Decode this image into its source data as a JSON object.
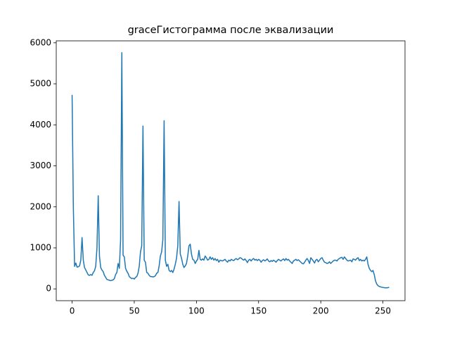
{
  "chart_data": {
    "type": "line",
    "title": "graceГистограмма после эквализации",
    "color": "#1f77b4",
    "x": [
      0,
      1,
      2,
      3,
      4,
      5,
      6,
      7,
      8,
      9,
      10,
      11,
      12,
      13,
      14,
      15,
      16,
      17,
      18,
      19,
      20,
      21,
      22,
      23,
      24,
      25,
      26,
      27,
      28,
      29,
      30,
      31,
      32,
      33,
      34,
      35,
      36,
      37,
      38,
      39,
      40,
      41,
      42,
      43,
      44,
      45,
      46,
      47,
      48,
      49,
      50,
      51,
      52,
      53,
      54,
      55,
      56,
      57,
      58,
      59,
      60,
      61,
      62,
      63,
      64,
      65,
      66,
      67,
      68,
      69,
      70,
      71,
      72,
      73,
      74,
      75,
      76,
      77,
      78,
      79,
      80,
      81,
      82,
      83,
      84,
      85,
      86,
      87,
      88,
      89,
      90,
      91,
      92,
      93,
      94,
      95,
      96,
      97,
      98,
      99,
      100,
      101,
      102,
      103,
      104,
      105,
      106,
      107,
      108,
      109,
      110,
      111,
      112,
      113,
      114,
      115,
      116,
      117,
      118,
      119,
      120,
      121,
      122,
      123,
      124,
      125,
      126,
      127,
      128,
      129,
      130,
      131,
      132,
      133,
      134,
      135,
      136,
      137,
      138,
      139,
      140,
      141,
      142,
      143,
      144,
      145,
      146,
      147,
      148,
      149,
      150,
      151,
      152,
      153,
      154,
      155,
      156,
      157,
      158,
      159,
      160,
      161,
      162,
      163,
      164,
      165,
      166,
      167,
      168,
      169,
      170,
      171,
      172,
      173,
      174,
      175,
      176,
      177,
      178,
      179,
      180,
      181,
      182,
      183,
      184,
      185,
      186,
      187,
      188,
      189,
      190,
      191,
      192,
      193,
      194,
      195,
      196,
      197,
      198,
      199,
      200,
      201,
      202,
      203,
      204,
      205,
      206,
      207,
      208,
      209,
      210,
      211,
      212,
      213,
      214,
      215,
      216,
      217,
      218,
      219,
      220,
      221,
      222,
      223,
      224,
      225,
      226,
      227,
      228,
      229,
      230,
      231,
      232,
      233,
      234,
      235,
      236,
      237,
      238,
      239,
      240,
      241,
      242,
      243,
      244,
      245,
      246,
      247,
      248,
      249,
      250,
      251,
      252,
      253,
      254,
      255
    ],
    "values": [
      4730,
      2000,
      550,
      630,
      530,
      540,
      560,
      700,
      1250,
      700,
      520,
      460,
      400,
      340,
      330,
      350,
      330,
      400,
      440,
      550,
      1000,
      2270,
      800,
      520,
      460,
      420,
      330,
      280,
      230,
      220,
      210,
      200,
      210,
      220,
      250,
      350,
      400,
      620,
      500,
      1200,
      5760,
      820,
      780,
      500,
      430,
      380,
      300,
      270,
      250,
      260,
      240,
      280,
      300,
      380,
      550,
      900,
      1050,
      3970,
      700,
      650,
      400,
      380,
      330,
      300,
      300,
      290,
      300,
      320,
      380,
      400,
      560,
      800,
      900,
      1200,
      4100,
      700,
      550,
      600,
      450,
      420,
      450,
      400,
      480,
      600,
      750,
      1050,
      2130,
      850,
      750,
      600,
      520,
      560,
      620,
      800,
      1050,
      1090,
      850,
      720,
      700,
      620,
      680,
      720,
      940,
      720,
      700,
      730,
      700,
      800,
      760,
      700,
      720,
      780,
      720,
      760,
      700,
      740,
      690,
      720,
      650,
      700,
      690,
      680,
      700,
      720,
      680,
      650,
      700,
      680,
      720,
      700,
      690,
      720,
      740,
      710,
      730,
      760,
      750,
      720,
      700,
      730,
      690,
      640,
      700,
      720,
      680,
      720,
      740,
      700,
      720,
      690,
      720,
      700,
      650,
      690,
      710,
      680,
      700,
      730,
      680,
      660,
      690,
      670,
      700,
      680,
      650,
      690,
      720,
      700,
      680,
      710,
      730,
      690,
      740,
      700,
      720,
      680,
      650,
      620,
      680,
      700,
      720,
      690,
      710,
      680,
      650,
      620,
      610,
      650,
      700,
      740,
      690,
      620,
      760,
      720,
      680,
      630,
      700,
      720,
      660,
      700,
      740,
      760,
      700,
      650,
      640,
      620,
      630,
      660,
      620,
      650,
      680,
      700,
      700,
      680,
      720,
      740,
      760,
      770,
      720,
      780,
      740,
      700,
      680,
      690,
      700,
      660,
      730,
      720,
      700,
      740,
      760,
      690,
      720,
      680,
      700,
      680,
      720,
      780,
      600,
      500,
      450,
      420,
      450,
      350,
      200,
      120,
      80,
      60,
      50,
      40,
      35,
      30,
      25,
      25,
      30,
      40
    ],
    "xlim": [
      -12.75,
      267.75
    ],
    "ylim": [
      -288,
      6048
    ],
    "xticks": [
      0,
      50,
      100,
      150,
      200,
      250
    ],
    "yticks": [
      0,
      1000,
      2000,
      3000,
      4000,
      5000,
      6000
    ]
  }
}
